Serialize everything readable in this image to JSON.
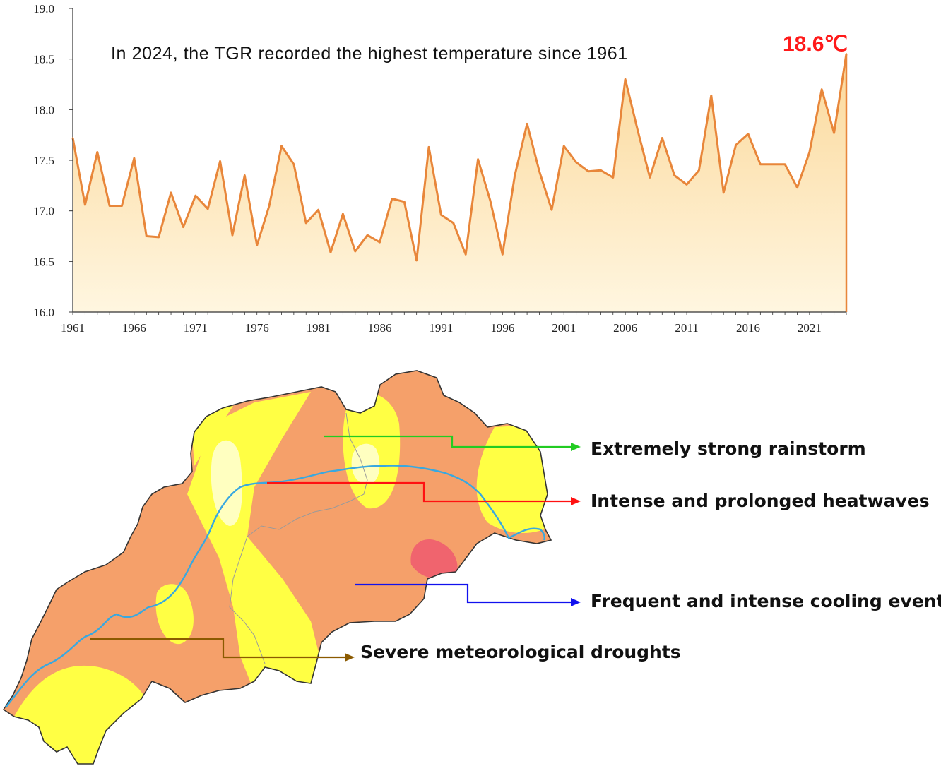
{
  "chart_data": {
    "type": "area",
    "title": "In 2024, the TGR recorded the highest temperature since 1961",
    "xlabel": "",
    "ylabel": "",
    "ylim": [
      16.0,
      19.0
    ],
    "xlim": [
      1961,
      2024
    ],
    "yticks": [
      "16.0",
      "16.5",
      "17.0",
      "17.5",
      "18.0",
      "18.5",
      "19.0"
    ],
    "xticks": [
      "1961",
      "1966",
      "1971",
      "1976",
      "1981",
      "1986",
      "1991",
      "1996",
      "2001",
      "2006",
      "2011",
      "2016",
      "2021"
    ],
    "grid": false,
    "legend": "none",
    "series": [
      {
        "x": [
          1961,
          1962,
          1963,
          1964,
          1965,
          1966,
          1967,
          1968,
          1969,
          1970,
          1971,
          1972,
          1973,
          1974,
          1975,
          1976,
          1977,
          1978,
          1979,
          1980,
          1981,
          1982,
          1983,
          1984,
          1985,
          1986,
          1987,
          1988,
          1989,
          1990,
          1991,
          1992,
          1993,
          1994,
          1995,
          1996,
          1997,
          1998,
          1999,
          2000,
          2001,
          2002,
          2003,
          2004,
          2005,
          2006,
          2007,
          2008,
          2009,
          2010,
          2011,
          2012,
          2013,
          2014,
          2015,
          2016,
          2017,
          2018,
          2019,
          2020,
          2021,
          2022,
          2023,
          2024
        ],
        "values": [
          17.72,
          17.06,
          17.58,
          17.05,
          17.05,
          17.52,
          16.75,
          16.74,
          17.18,
          16.84,
          17.15,
          17.02,
          17.49,
          16.76,
          17.35,
          16.66,
          17.05,
          17.64,
          17.46,
          16.88,
          17.01,
          16.59,
          16.97,
          16.6,
          16.76,
          16.69,
          17.12,
          17.09,
          16.51,
          17.63,
          16.96,
          16.88,
          16.57,
          17.51,
          17.1,
          16.57,
          17.35,
          17.86,
          17.39,
          17.01,
          17.64,
          17.48,
          17.39,
          17.4,
          17.33,
          18.3,
          17.8,
          17.33,
          17.72,
          17.35,
          17.26,
          17.4,
          18.14,
          17.18,
          17.65,
          17.76,
          17.46,
          17.46,
          17.46,
          17.23,
          17.58,
          18.2,
          17.77,
          18.55
        ]
      }
    ],
    "colors": {
      "line": "#e8863a",
      "fill_top": "#fbd89a",
      "fill_bottom": "#fff6e0",
      "peak_label": "#ff1a1a"
    },
    "annotations": [
      {
        "text": "18.6℃",
        "x": 2024,
        "y": 18.55
      }
    ]
  },
  "map": {
    "callouts": [
      {
        "text": "Extremely strong rainstorm",
        "color": "#22cc22"
      },
      {
        "text": "Intense and prolonged heatwaves",
        "color": "#ff1111"
      },
      {
        "text": "Frequent and intense cooling events",
        "color": "#1111ee"
      },
      {
        "text": "Severe meteorological droughts",
        "color": "#8b5a00"
      }
    ],
    "colors": {
      "base": "#f5a06a",
      "yellow": "#ffff44",
      "pale": "#ffffc0",
      "red": "#f0646e",
      "river": "#38a8e0",
      "border": "#333333"
    }
  }
}
